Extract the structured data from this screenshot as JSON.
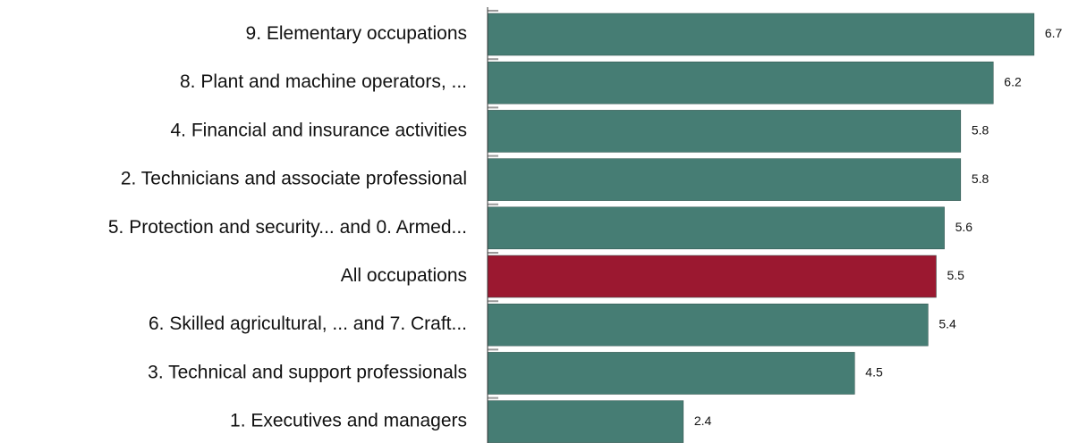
{
  "chart_data": {
    "type": "hbar",
    "categories": [
      "9. Elementary occupations",
      "8. Plant and machine operators, ...",
      "4.  Financial and insurance activities",
      "2. Technicians and associate professional",
      "5. Protection and security...  and 0. Armed...",
      "All occupations",
      "6. Skilled agricultural, ... and 7. Craft...",
      "3. Technical and support professionals",
      "1. Executives and managers"
    ],
    "values": [
      6.7,
      6.2,
      5.8,
      5.8,
      5.6,
      5.5,
      5.4,
      4.5,
      2.4
    ],
    "colors": [
      "#467d74",
      "#467d74",
      "#467d74",
      "#467d74",
      "#467d74",
      "#9b1830",
      "#467d74",
      "#467d74",
      "#467d74"
    ],
    "xlim": [
      0,
      7.14
    ]
  }
}
